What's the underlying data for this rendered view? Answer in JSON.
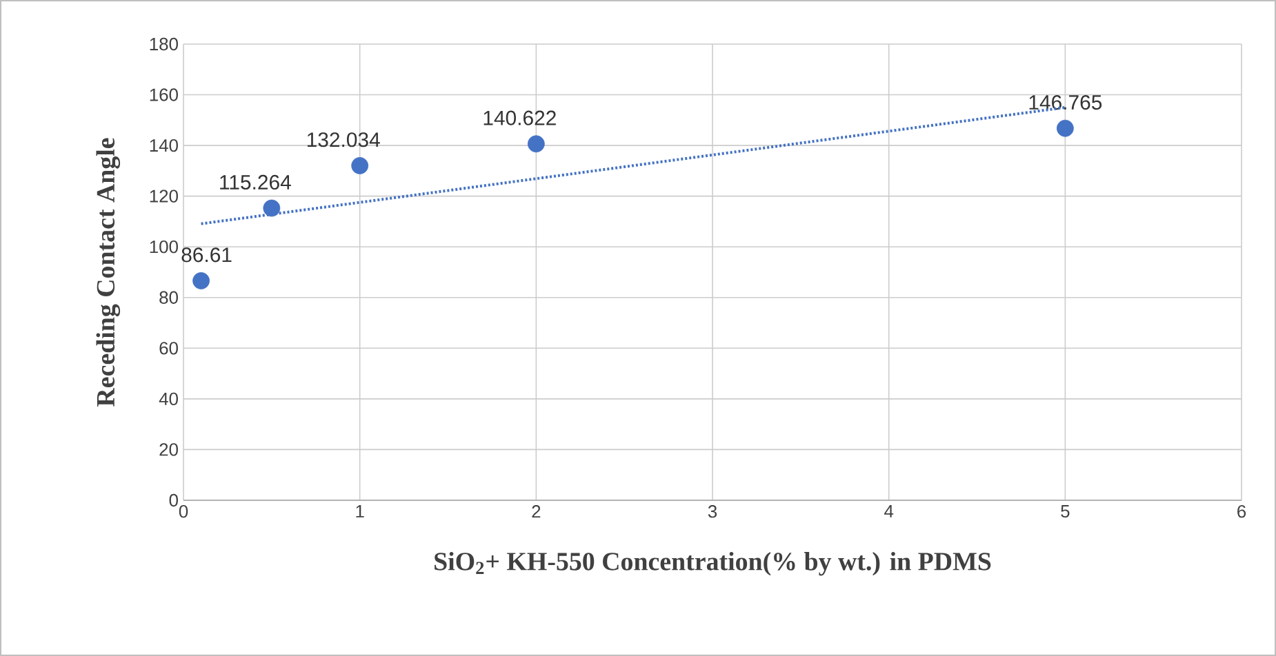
{
  "chart_data": {
    "type": "scatter",
    "xlabel": "SiO$_{2}$+ KH-550 Concentration(% by wt.) in PDMS",
    "ylabel": "Receding Contact Angle",
    "series": [
      {
        "type": "scatter",
        "color": "#4472c4",
        "x": [
          0.1,
          0.5,
          1,
          2,
          5
        ],
        "values": [
          86.61,
          115.264,
          132.034,
          140.622,
          146.765
        ],
        "value_labels": [
          "86.61",
          "115.264",
          "132.034",
          "140.622",
          "146.765"
        ],
        "marker": "circle"
      },
      {
        "type": "line",
        "color": "#4472c4",
        "x": [
          0.1,
          5
        ],
        "values": [
          109.1,
          155.0
        ],
        "line_style": "dotted",
        "marker": "none"
      }
    ],
    "xlim": [
      0,
      6
    ],
    "xticks": [
      0,
      1,
      2,
      3,
      4,
      5,
      6
    ],
    "ylim": [
      0,
      180
    ],
    "yticks": [
      0,
      20,
      40,
      60,
      80,
      100,
      120,
      140,
      160,
      180
    ],
    "grid": true
  }
}
